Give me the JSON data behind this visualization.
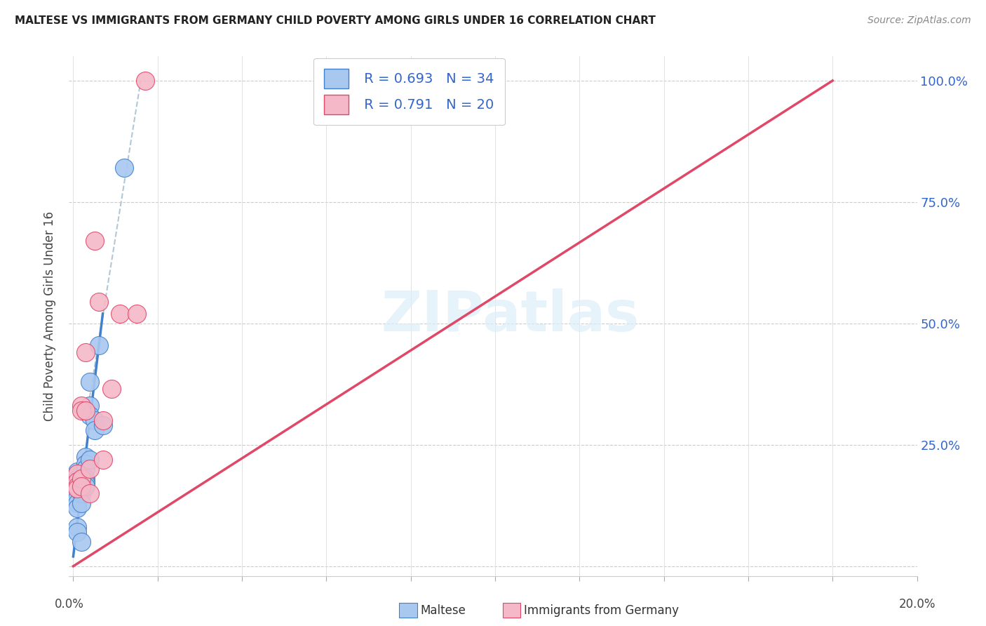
{
  "title": "MALTESE VS IMMIGRANTS FROM GERMANY CHILD POVERTY AMONG GIRLS UNDER 16 CORRELATION CHART",
  "source": "Source: ZipAtlas.com",
  "ylabel": "Child Poverty Among Girls Under 16",
  "legend_maltese_R": "0.693",
  "legend_maltese_N": "34",
  "legend_germany_R": "0.791",
  "legend_germany_N": "20",
  "maltese_color": "#a8c8f0",
  "germany_color": "#f4b8c8",
  "line_maltese_color": "#4080cc",
  "line_germany_color": "#e04868",
  "dashed_line_color": "#b0c8d8",
  "watermark": "ZIPatlas",
  "maltese_points": [
    [
      0.1,
      19.5
    ],
    [
      0.1,
      17.5
    ],
    [
      0.1,
      18.0
    ],
    [
      0.1,
      17.0
    ],
    [
      0.1,
      15.5
    ],
    [
      0.1,
      15.0
    ],
    [
      0.1,
      14.0
    ],
    [
      0.1,
      13.0
    ],
    [
      0.1,
      12.0
    ],
    [
      0.1,
      8.0
    ],
    [
      0.1,
      7.0
    ],
    [
      0.2,
      19.0
    ],
    [
      0.2,
      17.5
    ],
    [
      0.2,
      17.0
    ],
    [
      0.2,
      16.0
    ],
    [
      0.2,
      15.0
    ],
    [
      0.2,
      13.0
    ],
    [
      0.2,
      5.0
    ],
    [
      0.3,
      22.5
    ],
    [
      0.3,
      21.0
    ],
    [
      0.3,
      20.0
    ],
    [
      0.3,
      18.0
    ],
    [
      0.3,
      17.5
    ],
    [
      0.3,
      17.0
    ],
    [
      0.3,
      16.5
    ],
    [
      0.4,
      38.0
    ],
    [
      0.4,
      33.0
    ],
    [
      0.4,
      31.0
    ],
    [
      0.4,
      22.0
    ],
    [
      0.5,
      30.0
    ],
    [
      0.5,
      28.0
    ],
    [
      0.6,
      45.5
    ],
    [
      0.7,
      29.0
    ],
    [
      1.2,
      82.0
    ]
  ],
  "germany_points": [
    [
      0.1,
      19.0
    ],
    [
      0.1,
      17.5
    ],
    [
      0.1,
      16.5
    ],
    [
      0.1,
      16.0
    ],
    [
      0.2,
      33.0
    ],
    [
      0.2,
      32.0
    ],
    [
      0.2,
      18.0
    ],
    [
      0.2,
      16.5
    ],
    [
      0.3,
      44.0
    ],
    [
      0.3,
      32.0
    ],
    [
      0.4,
      20.0
    ],
    [
      0.4,
      15.0
    ],
    [
      0.5,
      67.0
    ],
    [
      0.6,
      54.5
    ],
    [
      0.7,
      30.0
    ],
    [
      0.7,
      22.0
    ],
    [
      0.9,
      36.5
    ],
    [
      1.1,
      52.0
    ],
    [
      1.5,
      52.0
    ],
    [
      1.7,
      100.0
    ]
  ],
  "maltese_line_x": [
    0.0,
    0.7
  ],
  "maltese_line_y": [
    2.0,
    52.0
  ],
  "germany_line_x": [
    0.0,
    18.0
  ],
  "germany_line_y": [
    0.0,
    100.0
  ],
  "dashed_line_x": [
    0.3,
    1.6
  ],
  "dashed_line_y": [
    30.0,
    100.0
  ],
  "xmin": -0.1,
  "xmax": 20.0,
  "ymin": -2.0,
  "ymax": 105.0,
  "yticks": [
    0.0,
    25.0,
    50.0,
    75.0,
    100.0
  ],
  "ytick_labels": [
    "",
    "25.0%",
    "50.0%",
    "75.0%",
    "100.0%"
  ],
  "xtick_positions": [
    0.0,
    2.0,
    4.0,
    6.0,
    8.0,
    10.0,
    12.0,
    14.0,
    16.0,
    18.0,
    20.0
  ]
}
